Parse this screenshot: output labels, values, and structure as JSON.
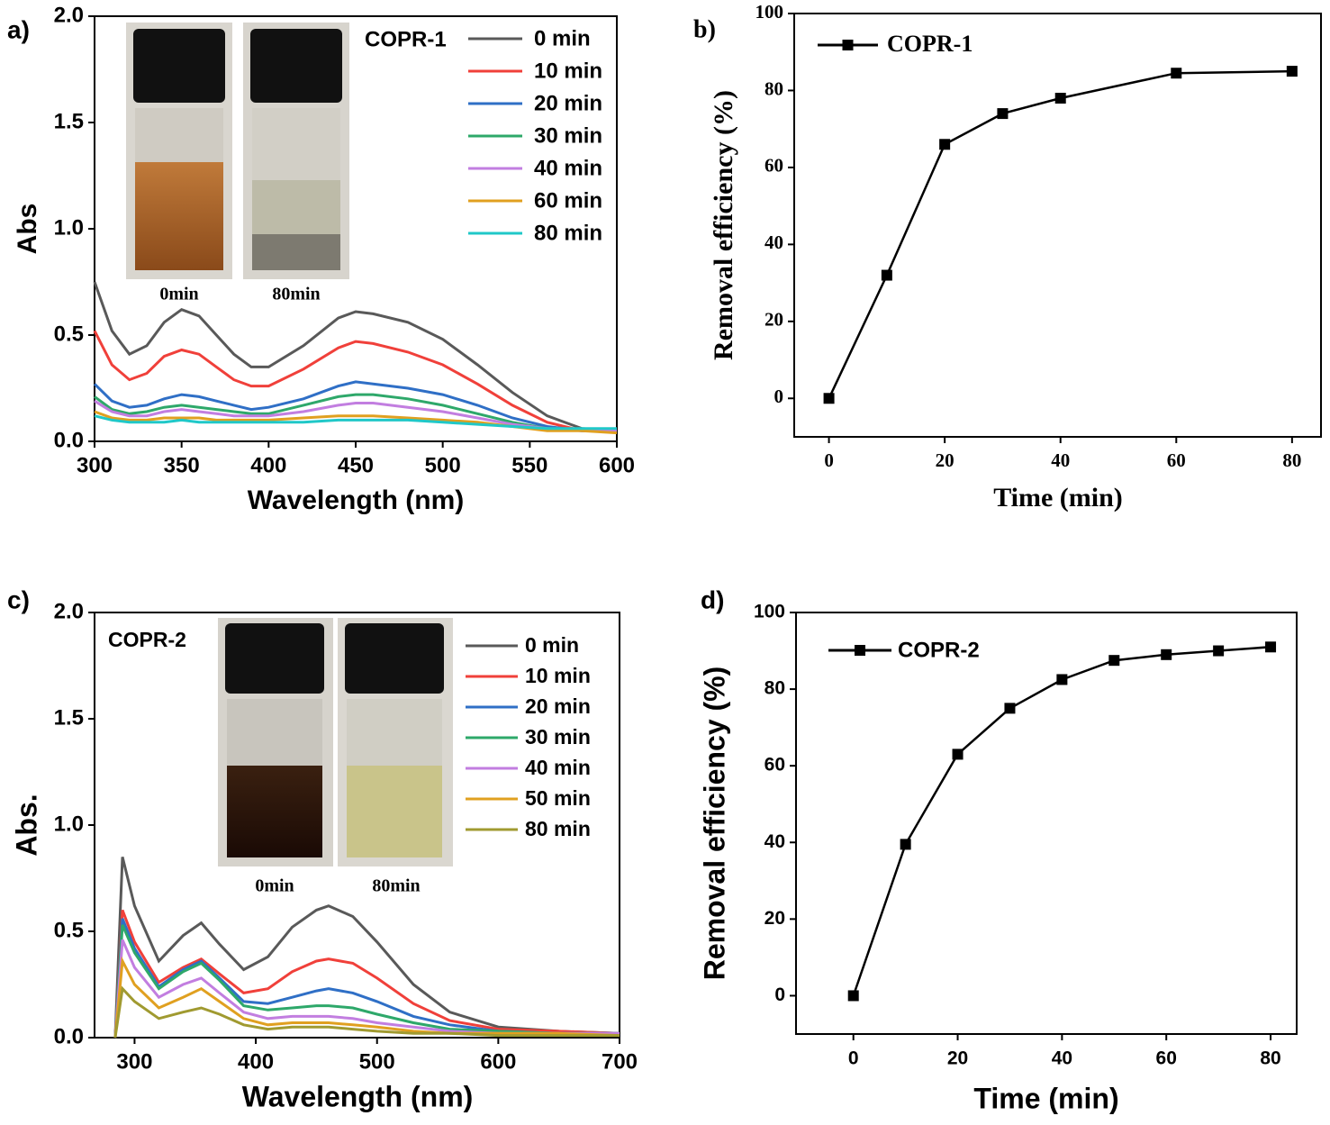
{
  "chart_data": [
    {
      "type": "line",
      "panel_label": "a)",
      "legend_title": "COPR-1",
      "x_label": "Wavelength (nm)",
      "y_label": "Abs",
      "inset_labels": [
        "0min",
        "80min"
      ],
      "x": [
        300,
        310,
        320,
        330,
        340,
        350,
        360,
        370,
        380,
        390,
        400,
        420,
        440,
        450,
        460,
        480,
        500,
        520,
        540,
        560,
        580,
        600
      ],
      "series": [
        {
          "name": "0 min",
          "color": "#595959",
          "values": [
            0.75,
            0.52,
            0.41,
            0.45,
            0.56,
            0.62,
            0.59,
            0.5,
            0.41,
            0.35,
            0.35,
            0.45,
            0.58,
            0.61,
            0.6,
            0.56,
            0.48,
            0.36,
            0.23,
            0.12,
            0.06,
            0.05
          ]
        },
        {
          "name": "10 min",
          "color": "#f0403a",
          "values": [
            0.52,
            0.36,
            0.29,
            0.32,
            0.4,
            0.43,
            0.41,
            0.35,
            0.29,
            0.26,
            0.26,
            0.34,
            0.44,
            0.47,
            0.46,
            0.42,
            0.36,
            0.27,
            0.17,
            0.09,
            0.05,
            0.05
          ]
        },
        {
          "name": "20 min",
          "color": "#2f6fc6",
          "values": [
            0.27,
            0.19,
            0.16,
            0.17,
            0.2,
            0.22,
            0.21,
            0.19,
            0.17,
            0.15,
            0.16,
            0.2,
            0.26,
            0.28,
            0.27,
            0.25,
            0.22,
            0.17,
            0.11,
            0.07,
            0.05,
            0.05
          ]
        },
        {
          "name": "30 min",
          "color": "#2ea86a",
          "values": [
            0.21,
            0.15,
            0.13,
            0.14,
            0.16,
            0.17,
            0.16,
            0.15,
            0.14,
            0.13,
            0.13,
            0.17,
            0.21,
            0.22,
            0.22,
            0.2,
            0.17,
            0.13,
            0.09,
            0.06,
            0.05,
            0.05
          ]
        },
        {
          "name": "40 min",
          "color": "#c27ee0",
          "values": [
            0.19,
            0.14,
            0.12,
            0.12,
            0.14,
            0.15,
            0.14,
            0.13,
            0.12,
            0.12,
            0.12,
            0.14,
            0.17,
            0.18,
            0.18,
            0.16,
            0.14,
            0.11,
            0.08,
            0.06,
            0.05,
            0.05
          ]
        },
        {
          "name": "60 min",
          "color": "#e0a020",
          "values": [
            0.14,
            0.11,
            0.1,
            0.1,
            0.11,
            0.11,
            0.11,
            0.1,
            0.1,
            0.1,
            0.1,
            0.11,
            0.12,
            0.12,
            0.12,
            0.11,
            0.1,
            0.09,
            0.07,
            0.05,
            0.05,
            0.04
          ]
        },
        {
          "name": "80 min",
          "color": "#20c8c8",
          "values": [
            0.12,
            0.1,
            0.09,
            0.09,
            0.09,
            0.1,
            0.09,
            0.09,
            0.09,
            0.09,
            0.09,
            0.09,
            0.1,
            0.1,
            0.1,
            0.1,
            0.09,
            0.08,
            0.07,
            0.06,
            0.06,
            0.06
          ]
        }
      ],
      "xlim": [
        300,
        600
      ],
      "xticks": [
        300,
        350,
        400,
        450,
        500,
        550,
        600
      ],
      "ylim": [
        0,
        2
      ],
      "yticks": [
        {
          "value": 0,
          "label": "0.0"
        },
        0.5,
        {
          "value": 1,
          "label": "1.0"
        },
        1.5,
        {
          "value": 2,
          "label": "2.0"
        }
      ]
    },
    {
      "type": "line",
      "panel_label": "b)",
      "x_label": "Time (min)",
      "y_label": "Removal efficiency (%)",
      "marker": "square",
      "x": [
        0,
        10,
        20,
        30,
        40,
        60,
        80
      ],
      "series": [
        {
          "name": "COPR-1",
          "color": "#000000",
          "values": [
            0,
            32,
            66,
            74,
            78,
            84.5,
            85
          ]
        }
      ],
      "xlim": [
        -6,
        85
      ],
      "xticks": [
        0,
        20,
        40,
        60,
        80
      ],
      "ylim": [
        -10,
        100
      ],
      "yticks": [
        0,
        20,
        40,
        60,
        80,
        100
      ]
    },
    {
      "type": "line",
      "panel_label": "c)",
      "legend_title": "COPR-2",
      "x_label": "Wavelength (nm)",
      "y_label": "Abs.",
      "inset_labels": [
        "0min",
        "80min"
      ],
      "x": [
        284,
        290,
        300,
        320,
        340,
        355,
        370,
        390,
        410,
        430,
        450,
        460,
        480,
        500,
        530,
        560,
        600,
        650,
        700
      ],
      "series": [
        {
          "name": "0 min",
          "color": "#595959",
          "values": [
            0,
            0.85,
            0.62,
            0.36,
            0.48,
            0.54,
            0.44,
            0.32,
            0.38,
            0.52,
            0.6,
            0.62,
            0.57,
            0.45,
            0.25,
            0.12,
            0.05,
            0.03,
            0.02
          ]
        },
        {
          "name": "10 min",
          "color": "#f0403a",
          "values": [
            0,
            0.6,
            0.45,
            0.26,
            0.33,
            0.37,
            0.3,
            0.21,
            0.23,
            0.31,
            0.36,
            0.37,
            0.35,
            0.28,
            0.16,
            0.08,
            0.04,
            0.03,
            0.02
          ]
        },
        {
          "name": "20 min",
          "color": "#2f6fc6",
          "values": [
            0,
            0.56,
            0.42,
            0.24,
            0.32,
            0.36,
            0.28,
            0.17,
            0.16,
            0.19,
            0.22,
            0.23,
            0.21,
            0.17,
            0.1,
            0.06,
            0.03,
            0.02,
            0.02
          ]
        },
        {
          "name": "30 min",
          "color": "#2ea86a",
          "values": [
            0,
            0.53,
            0.4,
            0.23,
            0.31,
            0.35,
            0.27,
            0.15,
            0.13,
            0.14,
            0.15,
            0.15,
            0.14,
            0.11,
            0.07,
            0.04,
            0.03,
            0.02,
            0.02
          ]
        },
        {
          "name": "40 min",
          "color": "#c27ee0",
          "values": [
            0,
            0.46,
            0.33,
            0.19,
            0.25,
            0.28,
            0.21,
            0.12,
            0.09,
            0.1,
            0.1,
            0.1,
            0.09,
            0.07,
            0.05,
            0.03,
            0.02,
            0.02,
            0.02
          ]
        },
        {
          "name": "50 min",
          "color": "#e0a020",
          "values": [
            0,
            0.36,
            0.25,
            0.14,
            0.19,
            0.23,
            0.17,
            0.09,
            0.06,
            0.07,
            0.07,
            0.07,
            0.06,
            0.05,
            0.03,
            0.02,
            0.02,
            0.02,
            0.01
          ]
        },
        {
          "name": "80 min",
          "color": "#a09a30",
          "values": [
            0,
            0.23,
            0.17,
            0.09,
            0.12,
            0.14,
            0.11,
            0.06,
            0.04,
            0.05,
            0.05,
            0.05,
            0.04,
            0.03,
            0.02,
            0.02,
            0.01,
            0.01,
            0.01
          ]
        }
      ],
      "xlim": [
        267,
        700
      ],
      "xticks": [
        300,
        400,
        500,
        600,
        700
      ],
      "ylim": [
        0,
        2
      ],
      "yticks": [
        {
          "value": 0,
          "label": "0.0"
        },
        0.5,
        {
          "value": 1,
          "label": "1.0"
        },
        1.5,
        {
          "value": 2,
          "label": "2.0"
        }
      ]
    },
    {
      "type": "line",
      "panel_label": "d)",
      "x_label": "Time (min)",
      "y_label": "Removal efficiency (%)",
      "marker": "square",
      "x": [
        0,
        10,
        20,
        30,
        40,
        50,
        60,
        70,
        80
      ],
      "series": [
        {
          "name": "COPR-2",
          "color": "#000000",
          "values": [
            0,
            39.5,
            63,
            75,
            82.5,
            87.5,
            89,
            90,
            91
          ]
        }
      ],
      "xlim": [
        -11,
        85
      ],
      "xticks": [
        0,
        20,
        40,
        60,
        80
      ],
      "ylim": [
        -10,
        100
      ],
      "yticks": [
        0,
        20,
        40,
        60,
        80,
        100
      ]
    }
  ]
}
